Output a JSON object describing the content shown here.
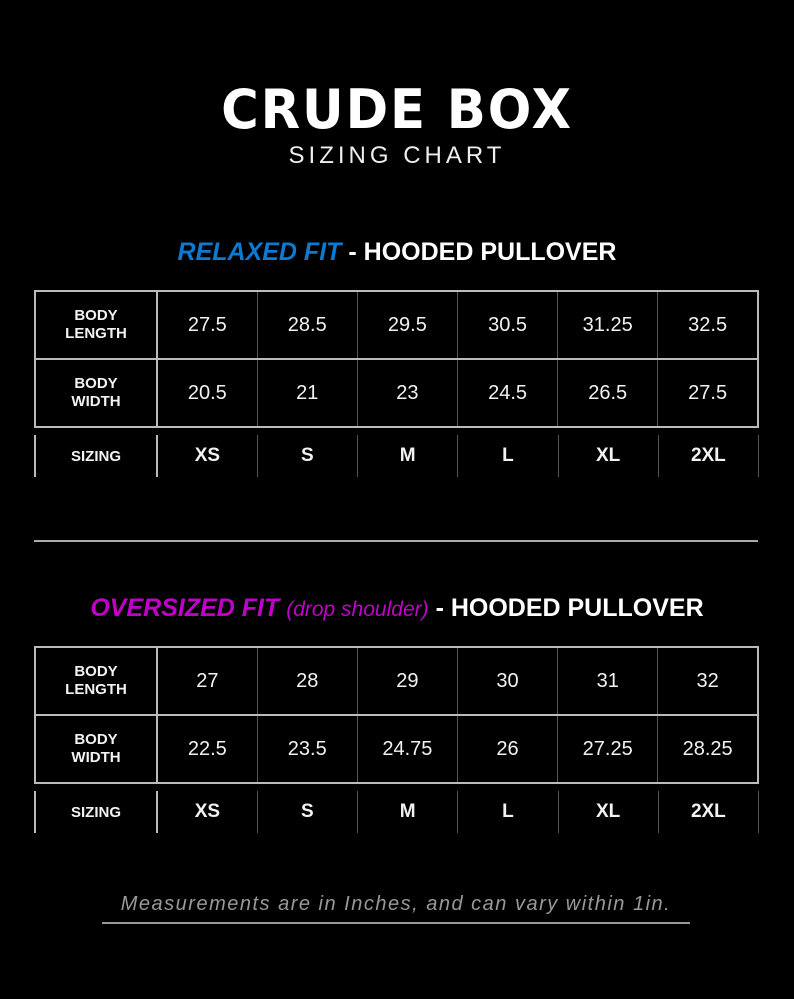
{
  "brand": "CRUDE BOX",
  "subtitle": "SIZING CHART",
  "colors": {
    "relaxed": "#0a7ad4",
    "oversized": "#c000c8"
  },
  "relaxed": {
    "fit": "RELAXED FIT",
    "suffix": "- HOODED PULLOVER",
    "rows": [
      {
        "label1": "BODY",
        "label2": "LENGTH",
        "values": [
          "27.5",
          "28.5",
          "29.5",
          "30.5",
          "31.25",
          "32.5"
        ]
      },
      {
        "label1": "BODY",
        "label2": "WIDTH",
        "values": [
          "20.5",
          "21",
          "23",
          "24.5",
          "26.5",
          "27.5"
        ]
      }
    ],
    "sizing_label": "SIZING",
    "sizes": [
      "XS",
      "S",
      "M",
      "L",
      "XL",
      "2XL"
    ]
  },
  "oversized": {
    "fit": "OVERSIZED FIT",
    "note": "(drop shoulder)",
    "suffix": "- HOODED PULLOVER",
    "rows": [
      {
        "label1": "BODY",
        "label2": "LENGTH",
        "values": [
          "27",
          "28",
          "29",
          "30",
          "31",
          "32"
        ]
      },
      {
        "label1": "BODY",
        "label2": "WIDTH",
        "values": [
          "22.5",
          "23.5",
          "24.75",
          "26",
          "27.25",
          "28.25"
        ]
      }
    ],
    "sizing_label": "SIZING",
    "sizes": [
      "XS",
      "S",
      "M",
      "L",
      "XL",
      "2XL"
    ]
  },
  "footer": "Measurements are in Inches, and can vary within 1in."
}
